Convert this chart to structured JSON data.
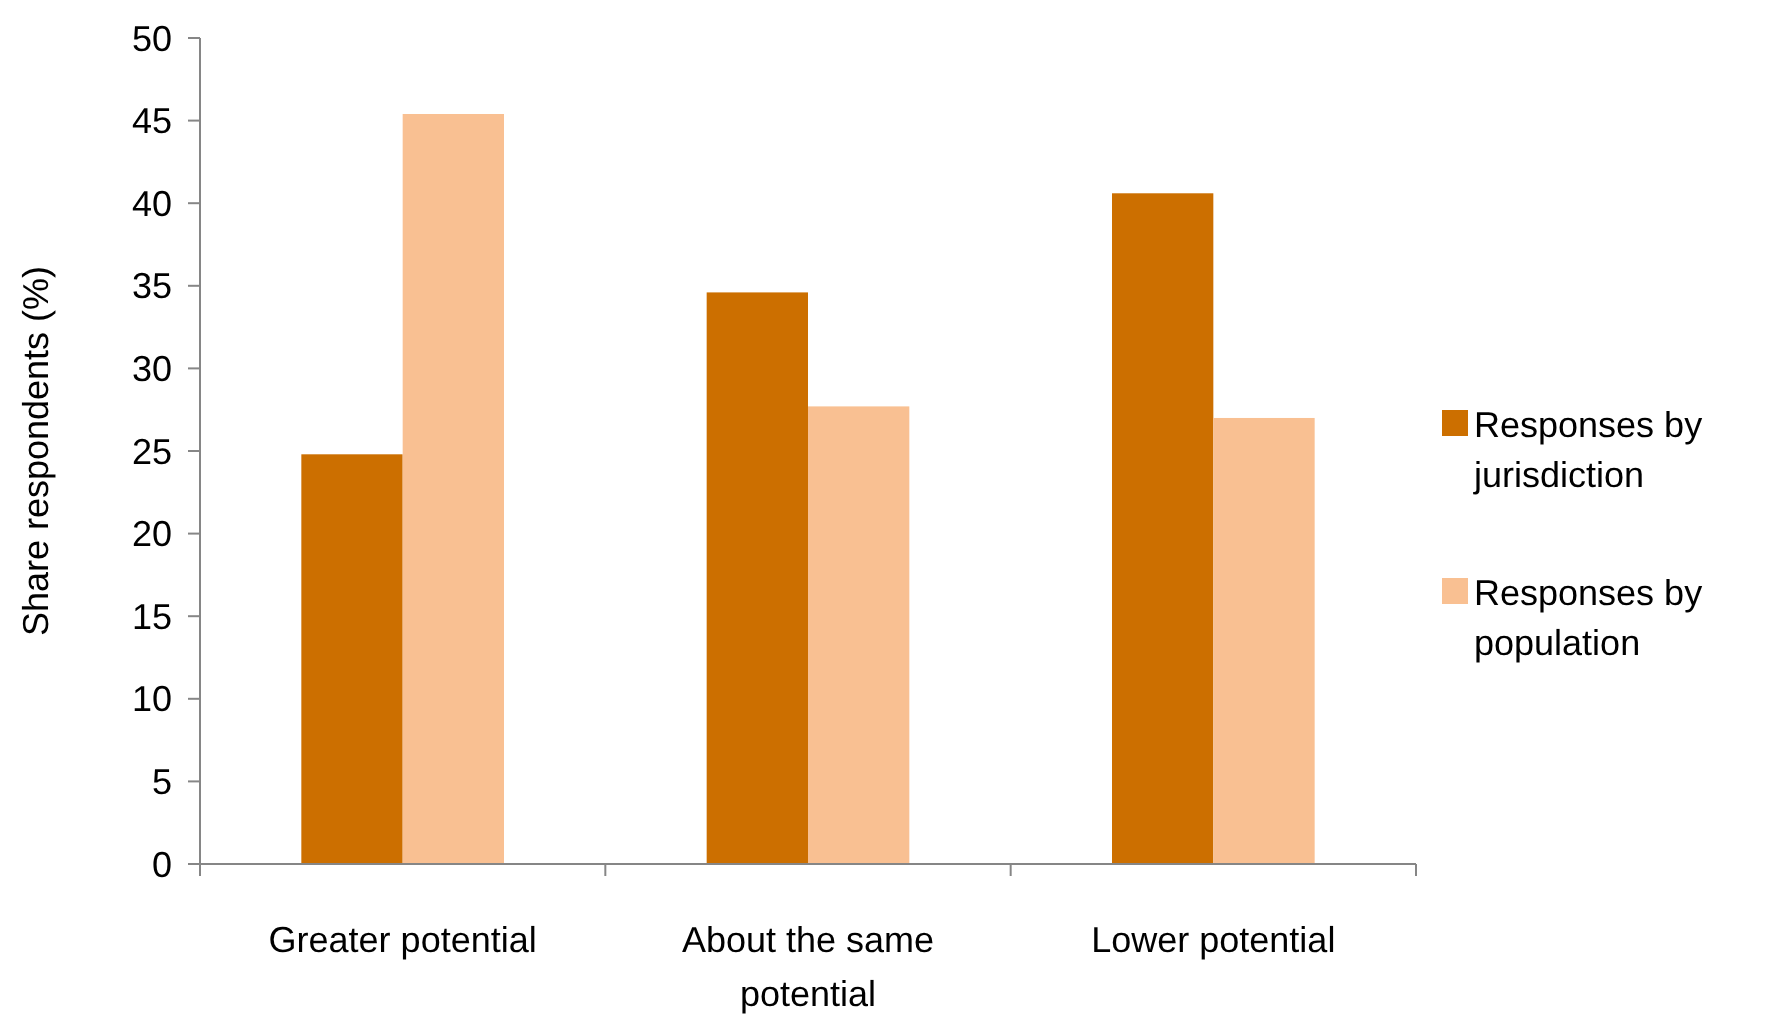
{
  "chart_data": {
    "type": "bar",
    "ylabel": "Share respondents (%)",
    "categories": [
      "Greater potential",
      "About the same potential",
      "Lower potential"
    ],
    "series": [
      {
        "name": "Responses by jurisdiction",
        "color": "#cc6f00",
        "values": [
          24.8,
          34.6,
          40.6
        ]
      },
      {
        "name": "Responses by population",
        "color": "#f9c092",
        "values": [
          45.4,
          27.7,
          27.0
        ]
      }
    ],
    "ylim": [
      0,
      50
    ],
    "yticks": [
      0,
      5,
      10,
      15,
      20,
      25,
      30,
      35,
      40,
      45,
      50
    ],
    "grid": false,
    "legend": "right"
  }
}
